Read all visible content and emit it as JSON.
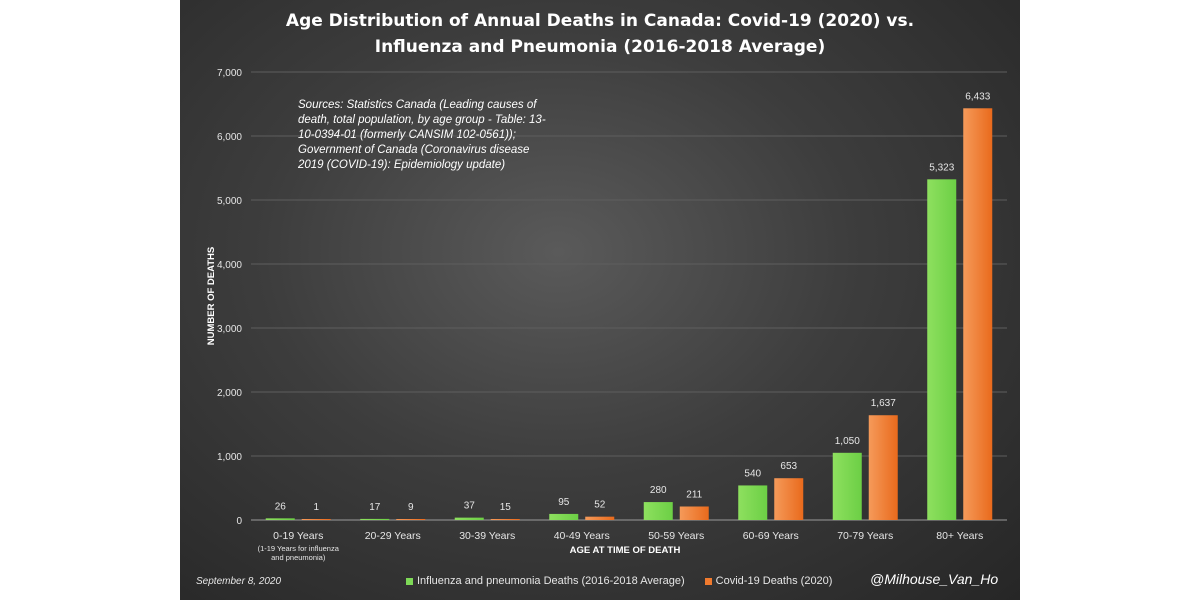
{
  "chart_data": {
    "type": "bar",
    "title_line1": "Age Distribution of Annual Deaths in Canada: Covid-19 (2020) vs.",
    "title_line2": "Influenza and Pneumonia (2016-2018 Average)",
    "categories": [
      "0-19 Years",
      "20-29 Years",
      "30-39 Years",
      "40-49 Years",
      "50-59 Years",
      "60-69 Years",
      "70-79 Years",
      "80+ Years"
    ],
    "category_note_line1": "(1-19 Years for influenza",
    "category_note_line2": "and pneumonia)",
    "series": [
      {
        "name": "Influenza and pneumonia Deaths (2016-2018 Average)",
        "color": "#7ed957",
        "values": [
          26,
          17,
          37,
          95,
          280,
          540,
          1050,
          5323
        ],
        "labels": [
          "26",
          "17",
          "37",
          "95",
          "280",
          "540",
          "1,050",
          "5,323"
        ]
      },
      {
        "name": "Covid-19 Deaths (2020)",
        "color": "#f07a2e",
        "values": [
          1,
          9,
          15,
          52,
          211,
          653,
          1637,
          6433
        ],
        "labels": [
          "1",
          "9",
          "15",
          "52",
          "211",
          "653",
          "1,637",
          "6,433"
        ]
      }
    ],
    "xlabel": "AGE AT TIME OF DEATH",
    "ylabel": "NUMBER OF DEATHS",
    "ylim": [
      0,
      7000
    ],
    "yticks": [
      0,
      1000,
      2000,
      3000,
      4000,
      5000,
      6000,
      7000
    ],
    "ytick_labels": [
      "0",
      "1,000",
      "2,000",
      "3,000",
      "4,000",
      "5,000",
      "6,000",
      "7,000"
    ],
    "grid": true,
    "legend_position": "bottom"
  },
  "sources_text": "Sources: Statistics Canada (Leading causes of death, total population, by age group - Table: 13-10-0394-01 (formerly CANSIM 102-0561)); Government of Canada (Coronavirus disease 2019 (COVID-19): Epidemiology update)",
  "date_text": "September 8, 2020",
  "handle_text": "@Milhouse_Van_Ho"
}
